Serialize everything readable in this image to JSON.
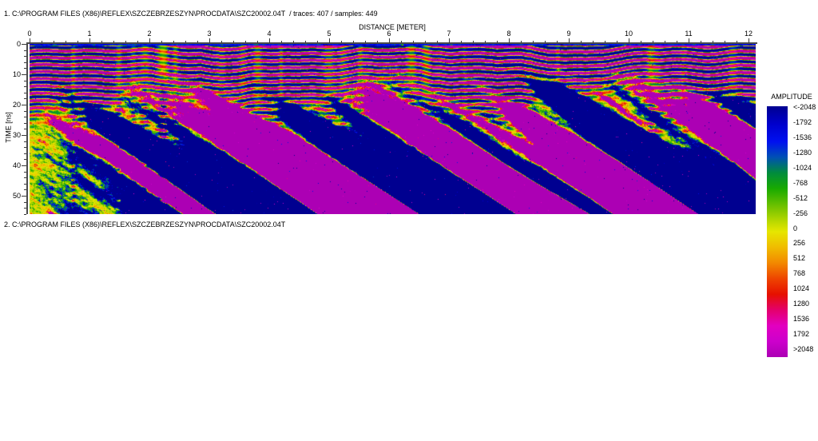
{
  "header": {
    "line1": "1. C:\\PROGRAM FILES (X86)\\REFLEX\\SZCZEBRZESZYN\\PROCDATA\\SZC20002.04T  / traces: 407 / samples: 449",
    "line2": "2. C:\\PROGRAM FILES (X86)\\REFLEX\\SZCZEBRZESZYN\\PROCDATA\\SZC20002.04T"
  },
  "axes": {
    "x": {
      "title": "DISTANCE [METER]",
      "unit": "meter",
      "min": 0,
      "max": 12,
      "major_step": 1,
      "minor_step": 0.2,
      "labels": [
        "0",
        "1",
        "2",
        "3",
        "4",
        "5",
        "6",
        "7",
        "8",
        "9",
        "10",
        "11",
        "12"
      ]
    },
    "y": {
      "title": "TIME [ns]",
      "unit": "ns",
      "min": 0,
      "max": 56,
      "major_step": 10,
      "minor_step": 2,
      "labels": [
        "0",
        "10",
        "20",
        "30",
        "40",
        "50"
      ]
    }
  },
  "legend": {
    "title": "AMPLITUDE",
    "labels": [
      "<-2048",
      "-1792",
      "-1536",
      "-1280",
      "-1024",
      "-768",
      "-512",
      "-256",
      "0",
      "256",
      "512",
      "768",
      "1024",
      "1280",
      "1536",
      "1792",
      ">2048"
    ]
  },
  "colormap": {
    "stops": [
      {
        "v": -2048,
        "c": "#000090"
      },
      {
        "v": -1760,
        "c": "#0000cc"
      },
      {
        "v": -1472,
        "c": "#0010f0"
      },
      {
        "v": -1216,
        "c": "#0050b4"
      },
      {
        "v": -960,
        "c": "#008c3c"
      },
      {
        "v": -704,
        "c": "#18aa00"
      },
      {
        "v": -384,
        "c": "#78c400"
      },
      {
        "v": -128,
        "c": "#c4dc00"
      },
      {
        "v": 0,
        "c": "#e6e600"
      },
      {
        "v": 256,
        "c": "#f0bc00"
      },
      {
        "v": 512,
        "c": "#f28800"
      },
      {
        "v": 768,
        "c": "#ee4400"
      },
      {
        "v": 1024,
        "c": "#e61000"
      },
      {
        "v": 1280,
        "c": "#e4006c"
      },
      {
        "v": 1536,
        "c": "#e200c0"
      },
      {
        "v": 1792,
        "c": "#cc00cc"
      },
      {
        "v": 2048,
        "c": "#ac00b4"
      }
    ]
  },
  "radargram": {
    "description": "GPR profile section, strong shallow ringing (blue/magenta bands) over noisy yellow-green deeper zone with vertical anomaly streaks",
    "seed": 1337
  }
}
